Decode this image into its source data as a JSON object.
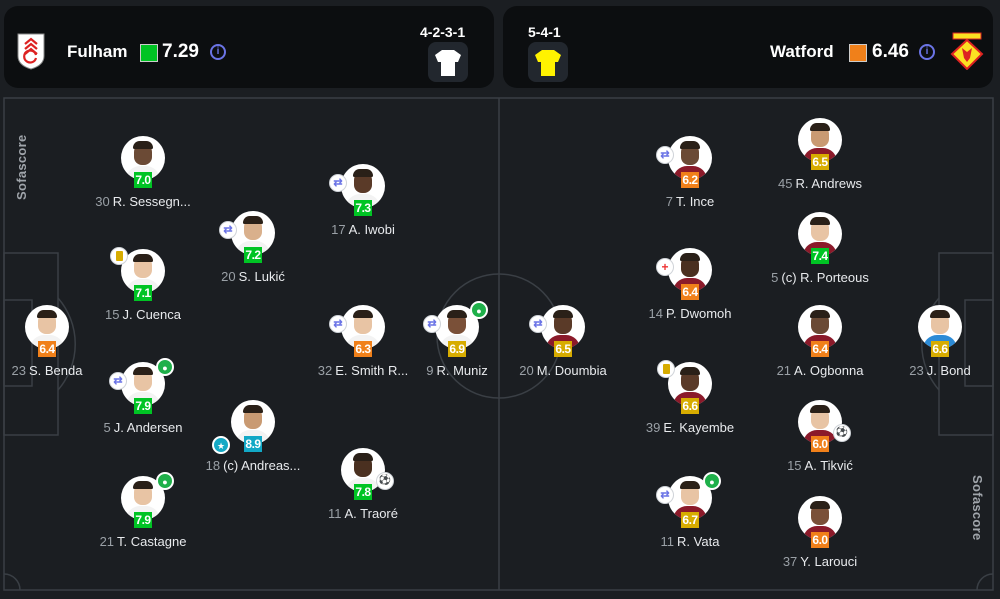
{
  "colors": {
    "rating_green": "#00c424",
    "rating_yellow": "#d7ac00",
    "rating_orange": "#f0801a",
    "rating_blue": "#12a8c6",
    "pitch": "#1b1e22",
    "line": "#3a3f45"
  },
  "home": {
    "name": "Fulham",
    "avg_rating": "7.29",
    "avg_color": "#00c424",
    "formation": "4-2-3-1",
    "kit_color": "#ffffff",
    "info_icon": "info-icon"
  },
  "away": {
    "name": "Watford",
    "avg_rating": "6.46",
    "avg_color": "#f0801a",
    "formation": "5-4-1",
    "kit_color": "#fff200",
    "info_icon": "info-icon"
  },
  "watermark": "Sofascore",
  "players": [
    {
      "no": "23",
      "name": "S. Benda",
      "rating": "6.4",
      "team": "home",
      "icons": []
    },
    {
      "no": "30",
      "name": "R. Sessegn...",
      "rating": "7.0",
      "team": "home",
      "icons": []
    },
    {
      "no": "15",
      "name": "J. Cuenca",
      "rating": "7.1",
      "team": "home",
      "icons": [
        "yellow-card"
      ]
    },
    {
      "no": "5",
      "name": "J. Andersen",
      "rating": "7.9",
      "team": "home",
      "icons": [
        "substitution",
        "goal"
      ]
    },
    {
      "no": "21",
      "name": "T. Castagne",
      "rating": "7.9",
      "team": "home",
      "icons": [
        "goal"
      ]
    },
    {
      "no": "20",
      "name": "S. Lukić",
      "rating": "7.2",
      "team": "home",
      "icons": [
        "substitution"
      ]
    },
    {
      "no": "18",
      "name": "(c) Andreas...",
      "rating": "8.9",
      "team": "home",
      "icons": [
        "player-of-match"
      ]
    },
    {
      "no": "17",
      "name": "A. Iwobi",
      "rating": "7.3",
      "team": "home",
      "icons": [
        "substitution"
      ]
    },
    {
      "no": "32",
      "name": "E. Smith R...",
      "rating": "6.3",
      "team": "home",
      "icons": [
        "substitution"
      ]
    },
    {
      "no": "11",
      "name": "A. Traoré",
      "rating": "7.8",
      "team": "home",
      "icons": [
        "assist"
      ]
    },
    {
      "no": "9",
      "name": "R. Muniz",
      "rating": "6.9",
      "team": "home",
      "icons": [
        "substitution",
        "goal"
      ]
    },
    {
      "no": "20",
      "name": "M. Doumbia",
      "rating": "6.5",
      "team": "away",
      "icons": [
        "substitution"
      ]
    },
    {
      "no": "7",
      "name": "T. Ince",
      "rating": "6.2",
      "team": "away",
      "icons": [
        "substitution"
      ]
    },
    {
      "no": "14",
      "name": "P. Dwomoh",
      "rating": "6.4",
      "team": "away",
      "icons": [
        "injury-substitution"
      ]
    },
    {
      "no": "39",
      "name": "E. Kayembe",
      "rating": "6.6",
      "team": "away",
      "icons": [
        "yellow-card"
      ]
    },
    {
      "no": "11",
      "name": "R. Vata",
      "rating": "6.7",
      "team": "away",
      "icons": [
        "substitution",
        "goal"
      ]
    },
    {
      "no": "45",
      "name": "R. Andrews",
      "rating": "6.5",
      "team": "away",
      "icons": []
    },
    {
      "no": "5",
      "name": "(c) R. Porteous",
      "rating": "7.4",
      "team": "away",
      "icons": []
    },
    {
      "no": "21",
      "name": "A. Ogbonna",
      "rating": "6.4",
      "team": "away",
      "icons": []
    },
    {
      "no": "15",
      "name": "A. Tikvić",
      "rating": "6.0",
      "team": "away",
      "icons": [
        "assist"
      ]
    },
    {
      "no": "37",
      "name": "Y. Larouci",
      "rating": "6.0",
      "team": "away",
      "icons": []
    },
    {
      "no": "23",
      "name": "J. Bond",
      "rating": "6.6",
      "team": "away",
      "icons": []
    }
  ]
}
